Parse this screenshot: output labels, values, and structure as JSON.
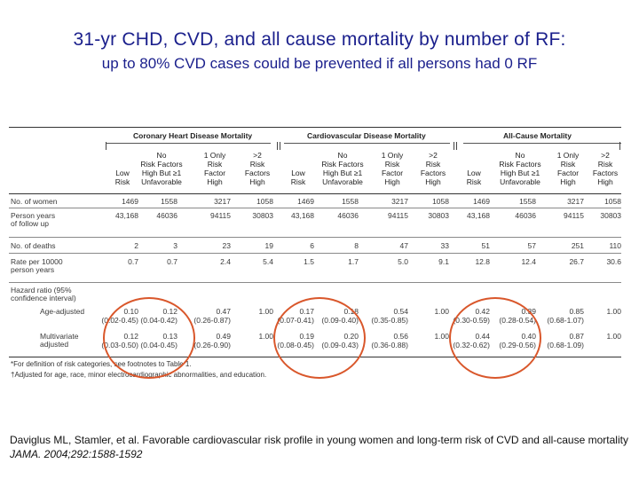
{
  "title": {
    "line1": "31-yr CHD, CVD, and all cause mortality by number of RF:",
    "line2": "up to 80% CVD cases could be prevented if all persons had 0 RF"
  },
  "table": {
    "groups": [
      "Coronary Heart Disease Mortality",
      "Cardiovascular Disease Mortality",
      "All-Cause Mortality"
    ],
    "column_headers": [
      "Low\nRisk",
      "No\nRisk Factors\nHigh But ≥1\nUnfavorable",
      "1 Only\nRisk\nFactor\nHigh",
      ">2\nRisk\nFactors\nHigh"
    ],
    "row_labels": {
      "women": "No. of women",
      "person_years": "Person years\n  of follow up",
      "deaths": "No. of deaths",
      "rate": "Rate per 10000\n  person years",
      "hr_header": "Hazard ratio (95%\n  confidence interval)",
      "age_adjusted": "Age-adjusted",
      "multivariate": "Multivariate\n  adjusted"
    },
    "women": [
      "1469",
      "1558",
      "3217",
      "1058",
      "1469",
      "1558",
      "3217",
      "1058",
      "1469",
      "1558",
      "3217",
      "1058"
    ],
    "person_years": [
      "43,168",
      "46036",
      "94115",
      "30803",
      "43,168",
      "46036",
      "94115",
      "30803",
      "43,168",
      "46036",
      "94115",
      "30803"
    ],
    "deaths": [
      "2",
      "3",
      "23",
      "19",
      "6",
      "8",
      "47",
      "33",
      "51",
      "57",
      "251",
      "110"
    ],
    "rate": [
      "0.7",
      "0.7",
      "2.4",
      "5.4",
      "1.5",
      "1.7",
      "5.0",
      "9.1",
      "12.8",
      "12.4",
      "26.7",
      "30.6"
    ],
    "age_adjusted": [
      "0.10",
      "0.12",
      "0.47",
      "1.00",
      "0.17",
      "0.18",
      "0.54",
      "1.00",
      "0.42",
      "0.39",
      "0.85",
      "1.00"
    ],
    "age_ci": [
      "(0.02-0.45)",
      "(0.04-0.42)",
      "(0.26-0.87)",
      "",
      "(0.07-0.41)",
      "(0.09-0.40)",
      "(0.35-0.85)",
      "",
      "(0.30-0.59)",
      "(0.28-0.54)",
      "(0.68-1.07)",
      ""
    ],
    "multivariate": [
      "0.12",
      "0.13",
      "0.49",
      "1.00",
      "0.19",
      "0.20",
      "0.56",
      "1.00",
      "0.44",
      "0.40",
      "0.87",
      "1.00"
    ],
    "multi_ci": [
      "(0.03-0.50)",
      "(0.04-0.45)",
      "(0.26-0.90)",
      "",
      "(0.08-0.45)",
      "(0.09-0.43)",
      "(0.36-0.88)",
      "",
      "(0.32-0.62)",
      "(0.29-0.56)",
      "(0.68-1.09)",
      ""
    ],
    "footnote1": "*For definition of risk categories, see footnotes to Table 1.",
    "footnote2": "†Adjusted for age, race, minor electrocardiographic abnormalities, and education."
  },
  "citation": {
    "text": "Daviglus ML, Stamler, et al. Favorable cardiovascular risk profile in young women and long-term risk of CVD and all-cause mortality ",
    "journal": "JAMA. 2004;292:1588-1592"
  },
  "colors": {
    "title": "#1a1f8c",
    "ring": "#d9572b"
  }
}
